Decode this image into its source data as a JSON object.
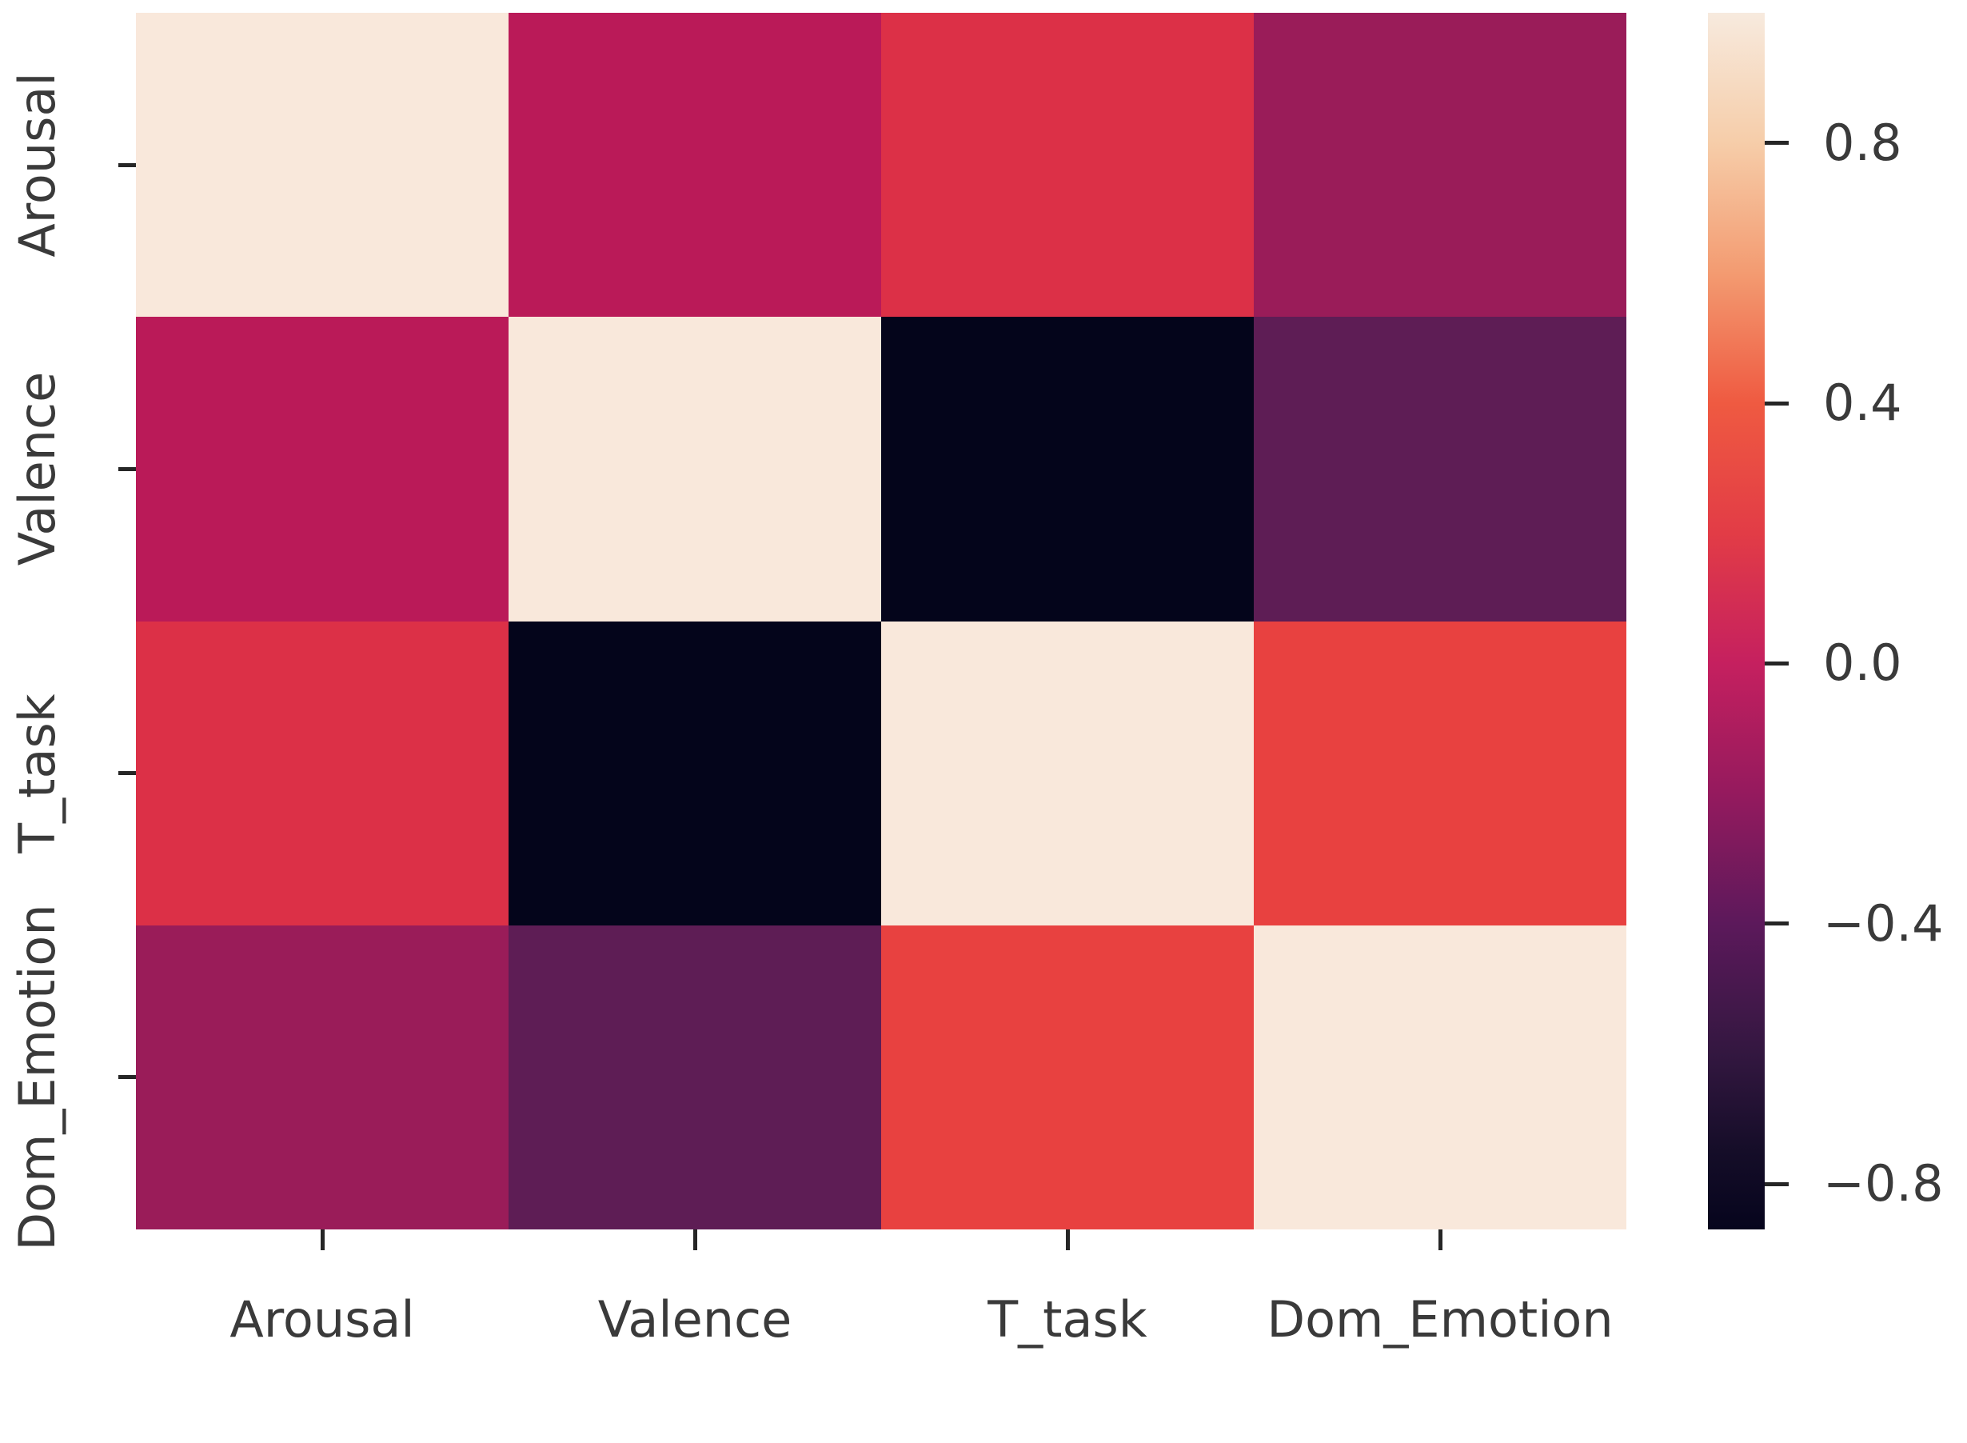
{
  "figure": {
    "title": "",
    "background": "#ffffff",
    "label_color": "#3a3a3a",
    "tick_color": "#262626"
  },
  "axes": {
    "x_tick_labels": [
      "Arousal",
      "Valence",
      "T_task",
      "Dom_Emotion"
    ],
    "y_tick_labels": [
      "Arousal",
      "Valence",
      "T_task",
      "Dom_Emotion"
    ]
  },
  "chart_data": {
    "type": "heatmap",
    "title": "",
    "xlabel": "",
    "ylabel": "",
    "grid": false,
    "legend_position": "right-colorbar",
    "variables": [
      "Arousal",
      "Valence",
      "T_task",
      "Dom_Emotion"
    ],
    "matrix": [
      [
        1.0,
        -0.06,
        0.13,
        -0.19
      ],
      [
        -0.06,
        1.0,
        -0.87,
        -0.4
      ],
      [
        0.13,
        -0.87,
        1.0,
        0.24
      ],
      [
        -0.19,
        -0.4,
        0.24,
        1.0
      ]
    ],
    "cell_colors": [
      [
        "#F9E8DB",
        "#BA1A58",
        "#DC3047",
        "#9A1C59"
      ],
      [
        "#BA1A58",
        "#F9E8DB",
        "#04051B",
        "#5E1D55"
      ],
      [
        "#DC3047",
        "#04051B",
        "#F9E8DB",
        "#E84140"
      ],
      [
        "#9A1C59",
        "#5E1D55",
        "#E84140",
        "#F9E8DB"
      ]
    ],
    "colorbar": {
      "vmin": -0.87,
      "vmax": 1.0,
      "ticks": [
        {
          "value": 0.8,
          "label": "0.8"
        },
        {
          "value": 0.4,
          "label": "0.4"
        },
        {
          "value": 0.0,
          "label": "0.0"
        },
        {
          "value": -0.4,
          "label": "−0.4"
        },
        {
          "value": -0.8,
          "label": "−0.8"
        }
      ],
      "gradient": [
        {
          "v": 1.0,
          "c": "#F7EADE"
        },
        {
          "v": 0.8,
          "c": "#F6CDA9"
        },
        {
          "v": 0.6,
          "c": "#F39B71"
        },
        {
          "v": 0.4,
          "c": "#EF5A41"
        },
        {
          "v": 0.2,
          "c": "#E23C46"
        },
        {
          "v": 0.0,
          "c": "#C5205F"
        },
        {
          "v": -0.2,
          "c": "#951A5E"
        },
        {
          "v": -0.4,
          "c": "#5C195B"
        },
        {
          "v": -0.6,
          "c": "#331740"
        },
        {
          "v": -0.75,
          "c": "#150D28"
        },
        {
          "v": -0.87,
          "c": "#06051D"
        }
      ]
    }
  }
}
